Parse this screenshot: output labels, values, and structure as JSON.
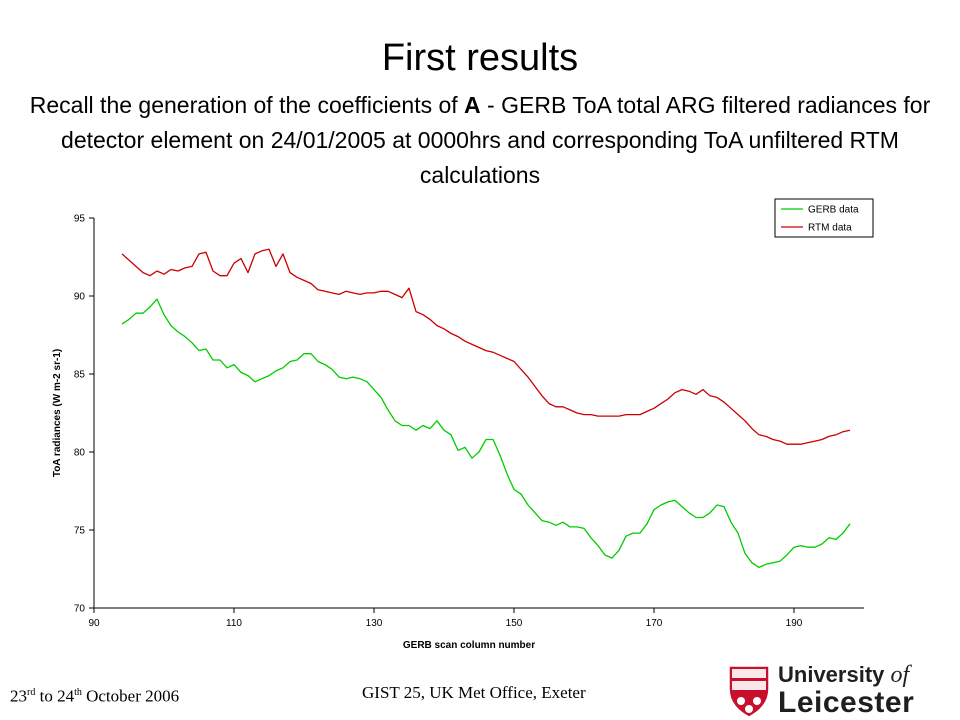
{
  "slide": {
    "title": "First results",
    "subtitle": {
      "before_bold": "Recall the generation of the coefficients of ",
      "bold": "A",
      "after_bold": " - GERB ToA total ARG filtered radiances for detector element on 24/01/2005 at 0000hrs and corresponding ToA unfiltered RTM calculations"
    }
  },
  "chart_data": {
    "type": "line",
    "xlabel": "GERB scan column number",
    "ylabel": "ToA radiances (W m-2 sr-1)",
    "xlim": [
      90,
      200
    ],
    "ylim": [
      70,
      95
    ],
    "xticks": [
      90,
      110,
      130,
      150,
      170,
      190
    ],
    "yticks": [
      70,
      75,
      80,
      85,
      90,
      95
    ],
    "grid": false,
    "legend_position": "top-right",
    "series": [
      {
        "name": "GERB data",
        "color": "#00cc00",
        "x": [
          94,
          95,
          96,
          97,
          98,
          99,
          100,
          101,
          102,
          103,
          104,
          105,
          106,
          107,
          108,
          109,
          110,
          111,
          112,
          113,
          114,
          115,
          116,
          117,
          118,
          119,
          120,
          121,
          122,
          123,
          124,
          125,
          126,
          127,
          128,
          129,
          130,
          131,
          132,
          133,
          134,
          135,
          136,
          137,
          138,
          139,
          140,
          141,
          142,
          143,
          144,
          145,
          146,
          147,
          148,
          149,
          150,
          151,
          152,
          153,
          154,
          155,
          156,
          157,
          158,
          159,
          160,
          161,
          162,
          163,
          164,
          165,
          166,
          167,
          168,
          169,
          170,
          171,
          172,
          173,
          174,
          175,
          176,
          177,
          178,
          179,
          180,
          181,
          182,
          183,
          184,
          185,
          186,
          187,
          188,
          189,
          190,
          191,
          192,
          193,
          194,
          195,
          196,
          197,
          198
        ],
        "values": [
          88.2,
          88.5,
          88.9,
          88.9,
          89.3,
          89.8,
          88.8,
          88.1,
          87.7,
          87.4,
          87.0,
          86.5,
          86.6,
          85.9,
          85.9,
          85.4,
          85.6,
          85.1,
          84.9,
          84.5,
          84.7,
          84.9,
          85.2,
          85.4,
          85.8,
          85.9,
          86.3,
          86.3,
          85.8,
          85.6,
          85.3,
          84.8,
          84.7,
          84.8,
          84.7,
          84.5,
          84.0,
          83.5,
          82.7,
          82.0,
          81.7,
          81.7,
          81.4,
          81.7,
          81.5,
          82.0,
          81.4,
          81.1,
          80.1,
          80.3,
          79.6,
          80.0,
          80.8,
          80.8,
          79.8,
          78.6,
          77.6,
          77.3,
          76.6,
          76.1,
          75.6,
          75.5,
          75.3,
          75.5,
          75.2,
          75.2,
          75.1,
          74.5,
          74.0,
          73.4,
          73.2,
          73.7,
          74.6,
          74.8,
          74.8,
          75.4,
          76.3,
          76.6,
          76.8,
          76.9,
          76.5,
          76.1,
          75.8,
          75.8,
          76.1,
          76.6,
          76.5,
          75.5,
          74.8,
          73.5,
          72.9,
          72.6,
          72.8,
          72.9,
          73.0,
          73.4,
          73.9,
          74.0,
          73.9,
          73.9,
          74.1,
          74.5,
          74.4,
          74.8,
          75.4
        ]
      },
      {
        "name": "RTM data",
        "color": "#cc0000",
        "x": [
          94,
          95,
          96,
          97,
          98,
          99,
          100,
          101,
          102,
          103,
          104,
          105,
          106,
          107,
          108,
          109,
          110,
          111,
          112,
          113,
          114,
          115,
          116,
          117,
          118,
          119,
          120,
          121,
          122,
          123,
          124,
          125,
          126,
          127,
          128,
          129,
          130,
          131,
          132,
          133,
          134,
          135,
          136,
          137,
          138,
          139,
          140,
          141,
          142,
          143,
          144,
          145,
          146,
          147,
          148,
          149,
          150,
          151,
          152,
          153,
          154,
          155,
          156,
          157,
          158,
          159,
          160,
          161,
          162,
          163,
          164,
          165,
          166,
          167,
          168,
          169,
          170,
          171,
          172,
          173,
          174,
          175,
          176,
          177,
          178,
          179,
          180,
          181,
          182,
          183,
          184,
          185,
          186,
          187,
          188,
          189,
          190,
          191,
          192,
          193,
          194,
          195,
          196,
          197,
          198
        ],
        "values": [
          92.7,
          92.3,
          91.9,
          91.5,
          91.3,
          91.6,
          91.4,
          91.7,
          91.6,
          91.8,
          91.9,
          92.7,
          92.8,
          91.6,
          91.3,
          91.3,
          92.1,
          92.4,
          91.5,
          92.7,
          92.9,
          93.0,
          91.9,
          92.7,
          91.5,
          91.2,
          91.0,
          90.8,
          90.4,
          90.3,
          90.2,
          90.1,
          90.3,
          90.2,
          90.1,
          90.2,
          90.2,
          90.3,
          90.3,
          90.1,
          89.9,
          90.5,
          89.0,
          88.8,
          88.5,
          88.1,
          87.9,
          87.6,
          87.4,
          87.1,
          86.9,
          86.7,
          86.5,
          86.4,
          86.2,
          86.0,
          85.8,
          85.3,
          84.8,
          84.2,
          83.6,
          83.1,
          82.9,
          82.9,
          82.7,
          82.5,
          82.4,
          82.4,
          82.3,
          82.3,
          82.3,
          82.3,
          82.4,
          82.4,
          82.4,
          82.6,
          82.8,
          83.1,
          83.4,
          83.8,
          84.0,
          83.9,
          83.7,
          84.0,
          83.6,
          83.5,
          83.2,
          82.8,
          82.4,
          82.0,
          81.5,
          81.1,
          81.0,
          80.8,
          80.7,
          80.5,
          80.5,
          80.5,
          80.6,
          80.7,
          80.8,
          81.0,
          81.1,
          81.3,
          81.4
        ]
      }
    ]
  },
  "footer": {
    "dates": {
      "start_day": "23",
      "start_suffix": "rd",
      "to": " to ",
      "end_day": "24",
      "end_suffix": "th",
      "month_year": " October 2006"
    },
    "event": "GIST 25, UK Met Office, Exeter"
  },
  "logo": {
    "line1_main": "University ",
    "line1_italic": "of",
    "line2": "Leicester",
    "icon": "university-shield-crest-icon",
    "shield_color": "#c8102e"
  }
}
